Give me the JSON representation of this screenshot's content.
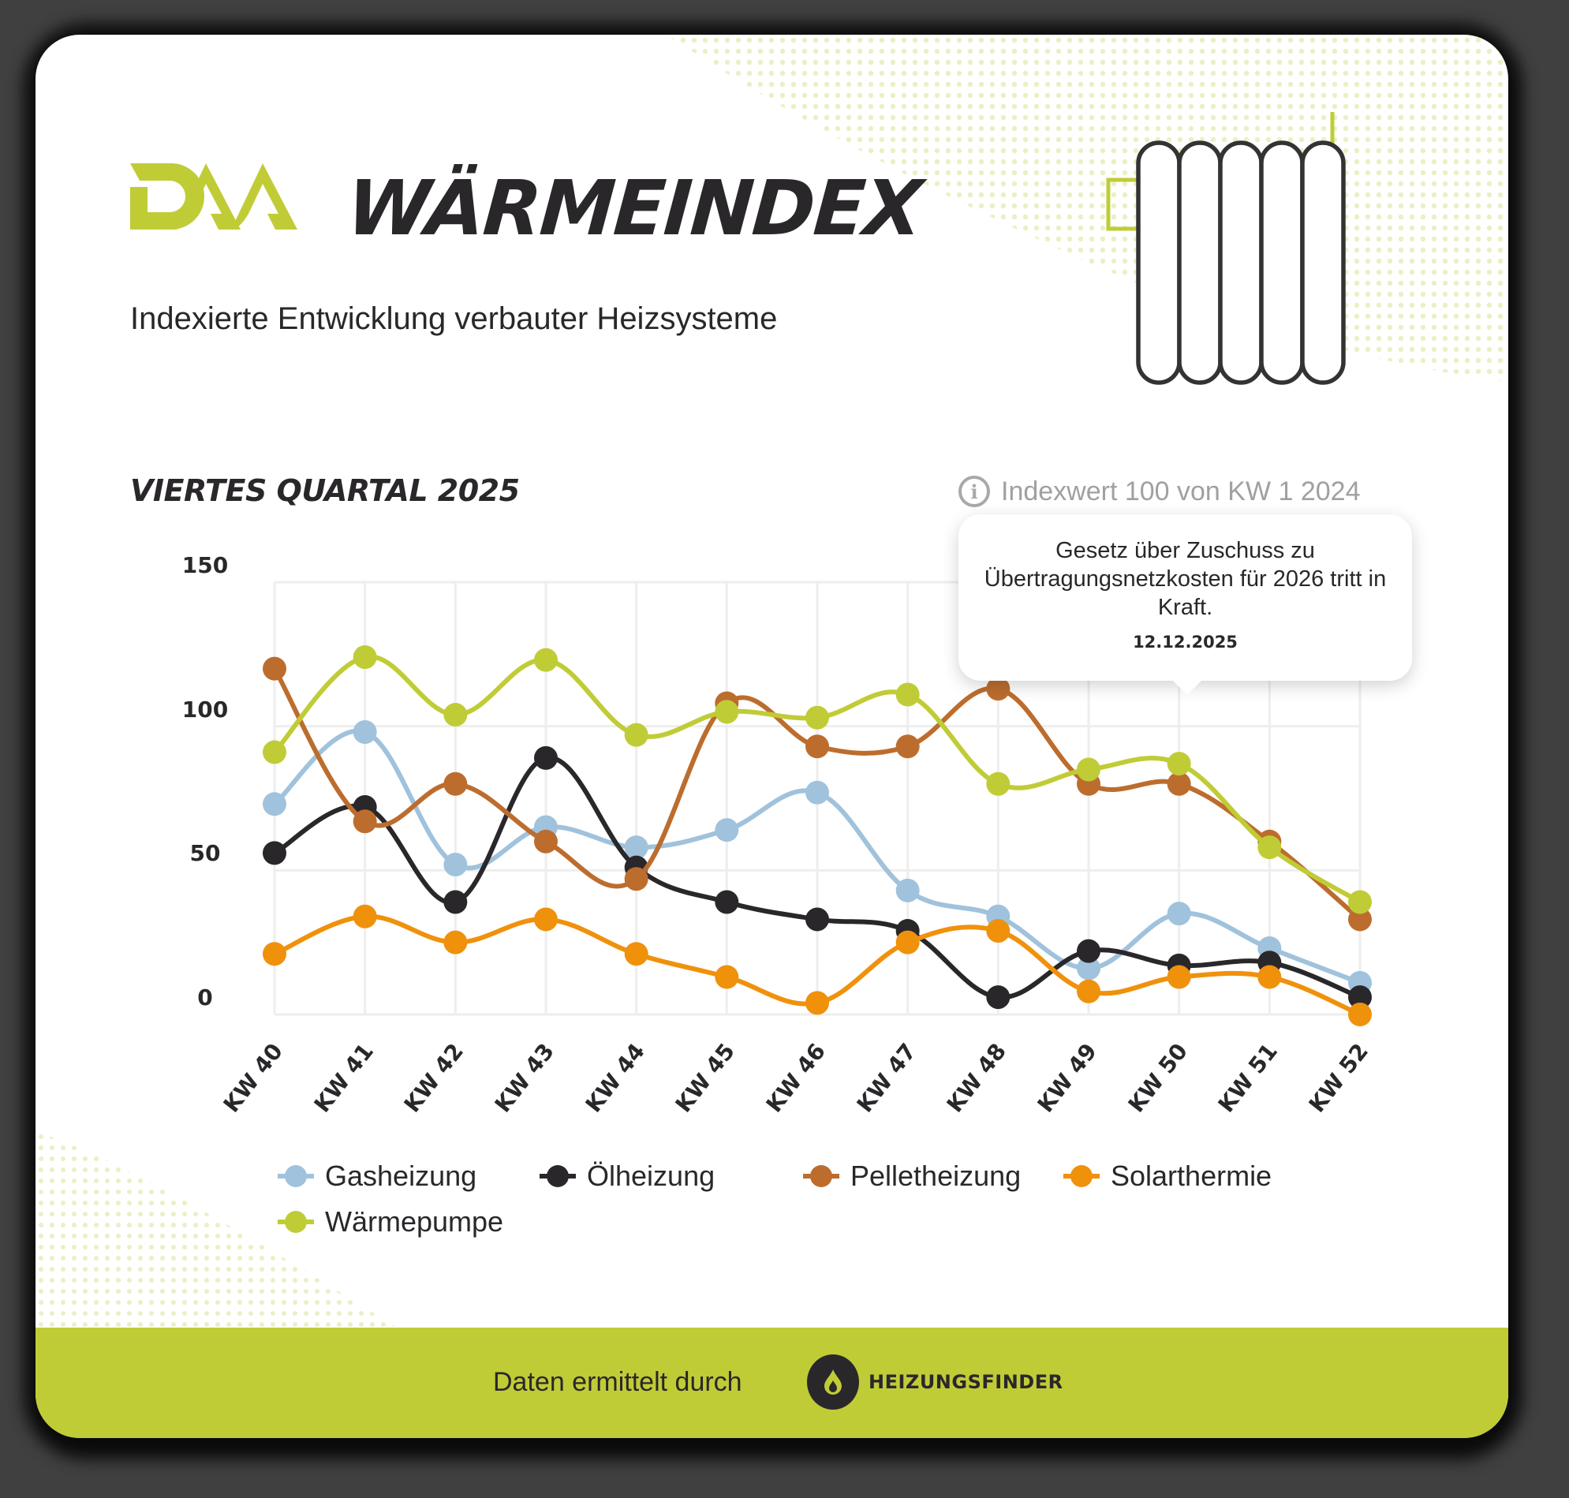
{
  "header": {
    "logo_text": "DAA",
    "title": "WÄRMEINDEX",
    "subtitle": "Indexierte Entwicklung verbauter Heizsysteme"
  },
  "chart_header": {
    "period": "VIERTES QUARTAL 2025",
    "info_note": "Indexwert 100 von KW 1 2024",
    "info_icon": "info-circle-icon"
  },
  "tooltip": {
    "text": "Gesetz über Zuschuss zu Übertragungsnetzkosten für 2026 tritt in Kraft.",
    "date": "12.12.2025",
    "anchor_category": "KW 50"
  },
  "footer": {
    "text": "Daten ermittelt durch",
    "brand": "HEIZUNGSFINDER",
    "brand_icon": "flame-icon",
    "background": "#c0cc36"
  },
  "colors": {
    "brand_green": "#c0cc36",
    "text_dark": "#2a272b",
    "grid": "#eeeeee",
    "info_gray": "#a0a0a0"
  },
  "chart_data": {
    "type": "line",
    "title": "VIERTES QUARTAL 2025",
    "subtitle": "Indexwert 100 von KW 1 2024",
    "xlabel": "",
    "ylabel": "",
    "ylim": [
      0,
      150
    ],
    "yticks": [
      0,
      50,
      100,
      150
    ],
    "grid": true,
    "smooth": true,
    "legend_position": "bottom",
    "categories": [
      "KW 40",
      "KW 41",
      "KW 42",
      "KW 43",
      "KW 44",
      "KW 45",
      "KW 46",
      "KW 47",
      "KW 48",
      "KW 49",
      "KW 50",
      "KW 51",
      "KW 52"
    ],
    "series": [
      {
        "name": "Gasheizung",
        "color": "#a0c2dc",
        "values": [
          73,
          98,
          52,
          65,
          58,
          64,
          77,
          43,
          34,
          16,
          35,
          23,
          11
        ]
      },
      {
        "name": "Ölheizung",
        "color": "#2a272b",
        "values": [
          56,
          72,
          39,
          89,
          51,
          39,
          33,
          29,
          6,
          22,
          17,
          18,
          6
        ]
      },
      {
        "name": "Pelletheizung",
        "color": "#bc6d2e",
        "values": [
          120,
          67,
          80,
          60,
          47,
          108,
          93,
          93,
          113,
          80,
          80,
          60,
          33
        ]
      },
      {
        "name": "Solarthermie",
        "color": "#f0910c",
        "values": [
          21,
          34,
          25,
          33,
          21,
          13,
          4,
          25,
          29,
          8,
          13,
          13,
          0
        ]
      },
      {
        "name": "Wärmepumpe",
        "color": "#c0cc36",
        "values": [
          91,
          124,
          104,
          123,
          97,
          105,
          103,
          111,
          80,
          85,
          87,
          58,
          39
        ]
      }
    ],
    "annotations": [
      {
        "category": "KW 50",
        "text": "Gesetz über Zuschuss zu Übertragungsnetzkosten für 2026 tritt in Kraft.",
        "date": "12.12.2025"
      }
    ]
  }
}
